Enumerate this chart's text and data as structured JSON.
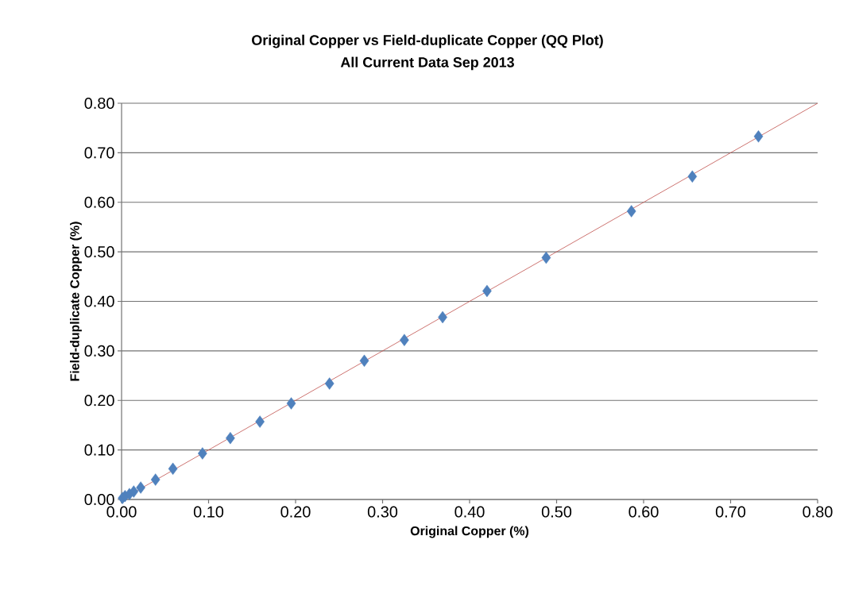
{
  "chart_data": {
    "type": "scatter",
    "title": "Original Copper vs Field-duplicate Copper (QQ Plot)",
    "subtitle": "All Current Data Sep 2013",
    "xlabel": "Original Copper (%)",
    "ylabel": "Field-duplicate Copper (%)",
    "xlim": [
      0,
      0.8
    ],
    "ylim": [
      0,
      0.8
    ],
    "xticks": [
      {
        "value": 0,
        "label": "0.00"
      },
      {
        "value": 0.1,
        "label": "0.10"
      },
      {
        "value": 0.2,
        "label": "0.20"
      },
      {
        "value": 0.3,
        "label": "0.30"
      },
      {
        "value": 0.4,
        "label": "0.40"
      },
      {
        "value": 0.5,
        "label": "0.50"
      },
      {
        "value": 0.6,
        "label": "0.60"
      },
      {
        "value": 0.7,
        "label": "0.70"
      },
      {
        "value": 0.8,
        "label": "0.80"
      }
    ],
    "yticks": [
      {
        "value": 0,
        "label": "0.00"
      },
      {
        "value": 0.1,
        "label": "0.10"
      },
      {
        "value": 0.2,
        "label": "0.20"
      },
      {
        "value": 0.3,
        "label": "0.30"
      },
      {
        "value": 0.4,
        "label": "0.40"
      },
      {
        "value": 0.5,
        "label": "0.50"
      },
      {
        "value": 0.6,
        "label": "0.60"
      },
      {
        "value": 0.7,
        "label": "0.70"
      },
      {
        "value": 0.8,
        "label": "0.80"
      }
    ],
    "grid": "y",
    "series": [
      {
        "color": "#4f81bd",
        "marker": "diamond",
        "x": [
          0.001,
          0.004,
          0.009,
          0.014,
          0.022,
          0.039,
          0.059,
          0.093,
          0.125,
          0.159,
          0.195,
          0.239,
          0.279,
          0.325,
          0.369,
          0.42,
          0.488,
          0.586,
          0.656,
          0.732
        ],
        "values": [
          0.003,
          0.007,
          0.011,
          0.016,
          0.024,
          0.04,
          0.062,
          0.093,
          0.124,
          0.157,
          0.194,
          0.234,
          0.28,
          0.322,
          0.368,
          0.421,
          0.488,
          0.582,
          0.652,
          0.733
        ]
      },
      {
        "type": "line",
        "color": "#c0504d",
        "marker": "none",
        "line_style": "solid",
        "x": [
          0,
          0.8
        ],
        "values": [
          0,
          0.8
        ]
      }
    ]
  }
}
